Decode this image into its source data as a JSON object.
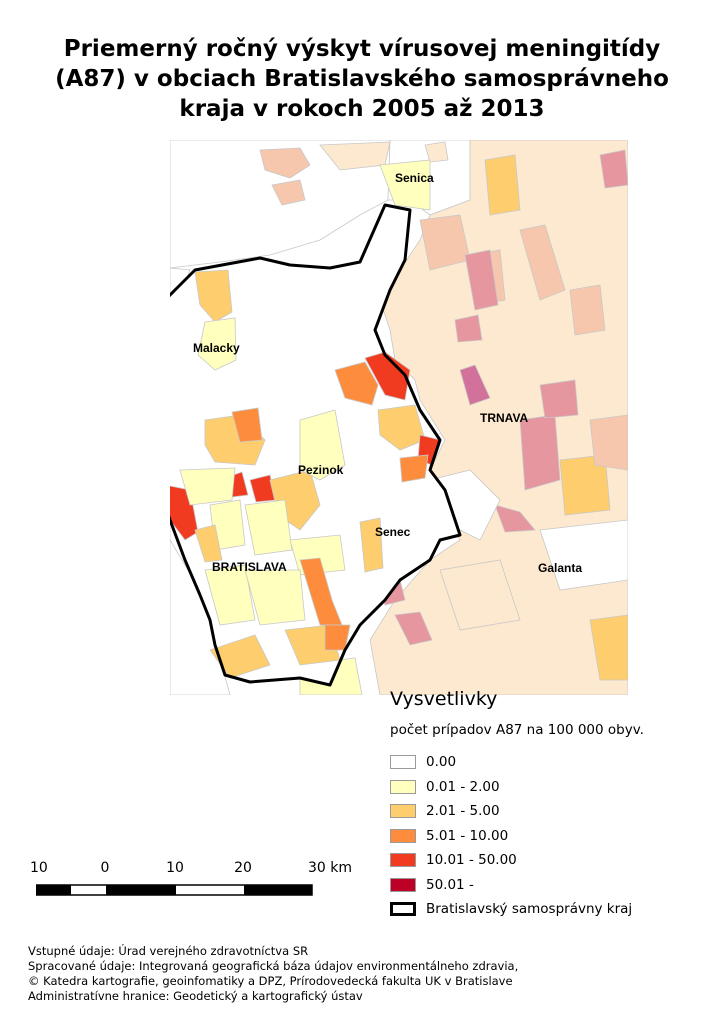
{
  "title": {
    "line1": "Priemerný ročný výskyt vírusovej meningitídy",
    "line2": "(A87) v obciach Bratislavského samosprávneho",
    "line3": "kraja v rokoch 2005 až 2013"
  },
  "map": {
    "place_labels": {
      "senica": "Senica",
      "malacky": "Malacky",
      "trnava": "TRNAVA",
      "pezinok": "Pezinok",
      "senec": "Senec",
      "bratislava": "BRATISLAVA",
      "galanta": "Galanta"
    },
    "colors": {
      "class_0": "#ffffff",
      "class_1": "#ffffbe",
      "class_2": "#fecd6e",
      "class_3": "#fd8d3c",
      "class_4": "#f03b20",
      "class_5": "#bd0026",
      "outside_light": "#fde9cf",
      "outside_mid": "#f6c7ad",
      "outside_dark": "#e6969e",
      "boundary": "#000000",
      "municipal_border": "#c8c8c8"
    }
  },
  "legend": {
    "title": "Vysvetlivky",
    "subtitle": "počet prípadov A87 na 100 000 obyv.",
    "classes": [
      {
        "label": "0.00",
        "color": "#ffffff"
      },
      {
        "label": "0.01 - 2.00",
        "color": "#ffffbe"
      },
      {
        "label": "2.01 - 5.00",
        "color": "#fecd6e"
      },
      {
        "label": "5.01 - 10.00",
        "color": "#fd8d3c"
      },
      {
        "label": "10.01 - 50.00",
        "color": "#f03b20"
      },
      {
        "label": "50.01 -",
        "color": "#bd0026"
      }
    ],
    "boundary_label": "Bratislavský samosprávny kraj"
  },
  "scale_bar": {
    "labels": [
      "10",
      "0",
      "10",
      "20",
      "30 km"
    ]
  },
  "credits": [
    "Vstupné údaje: Úrad verejného zdravotníctva SR",
    "Spracované údaje: Integrovaná geografická báza údajov environmentálneho zdravia,",
    "© Katedra kartografie, geoinfomatiky a DPZ, Prírodovedecká fakulta UK v Bratislave",
    "Administratívne hranice: Geodetický a kartografický ústav"
  ]
}
